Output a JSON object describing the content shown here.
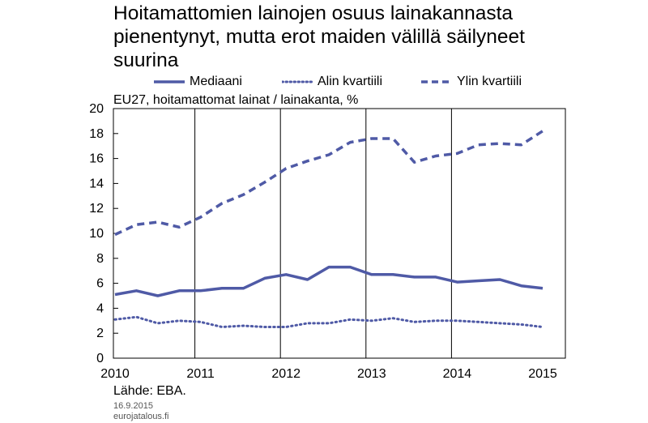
{
  "title": "Hoitamattomien lainojen osuus lainakannasta\npienentynyt, mutta erot maiden välillä säilyneet\nsuurina",
  "subtitle": "EU27, hoitamattomat lainat / lainakanta, %",
  "source": "Lähde: EBA.",
  "date": "16.9.2015",
  "site": "eurojatalous.fi",
  "colors": {
    "series": "#4f5aa6"
  },
  "chart_data": {
    "type": "line",
    "title": "Hoitamattomien lainojen osuus lainakannasta pienentynyt, mutta erot maiden välillä säilyneet suurina",
    "ylabel": "EU27, hoitamattomat lainat / lainakanta, %",
    "xlabel": "",
    "xlim": [
      2010,
      2015
    ],
    "ylim": [
      0,
      20
    ],
    "yticks": [
      "0",
      "2",
      "4",
      "6",
      "8",
      "10",
      "12",
      "14",
      "16",
      "18",
      "20"
    ],
    "xticks": [
      "2010",
      "2011",
      "2012",
      "2013",
      "2014",
      "2015"
    ],
    "legend": "top",
    "grid": "vertical",
    "x": [
      2010.0,
      2010.25,
      2010.5,
      2010.75,
      2011.0,
      2011.25,
      2011.5,
      2011.75,
      2012.0,
      2012.25,
      2012.5,
      2012.75,
      2013.0,
      2013.25,
      2013.5,
      2013.75,
      2014.0,
      2014.25,
      2014.5,
      2014.75,
      2015.0
    ],
    "series": [
      {
        "name": "Mediaani",
        "style": "solid",
        "values": [
          5.1,
          5.4,
          5.0,
          5.4,
          5.4,
          5.6,
          5.6,
          6.4,
          6.7,
          6.3,
          7.3,
          7.3,
          6.7,
          6.7,
          6.5,
          6.5,
          6.1,
          6.2,
          6.3,
          5.8,
          5.6
        ]
      },
      {
        "name": "Alin kvartiili",
        "style": "dotted",
        "values": [
          3.1,
          3.3,
          2.8,
          3.0,
          2.9,
          2.5,
          2.6,
          2.5,
          2.5,
          2.8,
          2.8,
          3.1,
          3.0,
          3.2,
          2.9,
          3.0,
          3.0,
          2.9,
          2.8,
          2.7,
          2.5
        ]
      },
      {
        "name": "Ylin kvartiili",
        "style": "dashed",
        "values": [
          9.9,
          10.7,
          10.9,
          10.5,
          11.3,
          12.4,
          13.1,
          14.1,
          15.2,
          15.8,
          16.3,
          17.3,
          17.6,
          17.6,
          15.7,
          16.2,
          16.4,
          17.1,
          17.2,
          17.1,
          18.2
        ]
      }
    ]
  }
}
